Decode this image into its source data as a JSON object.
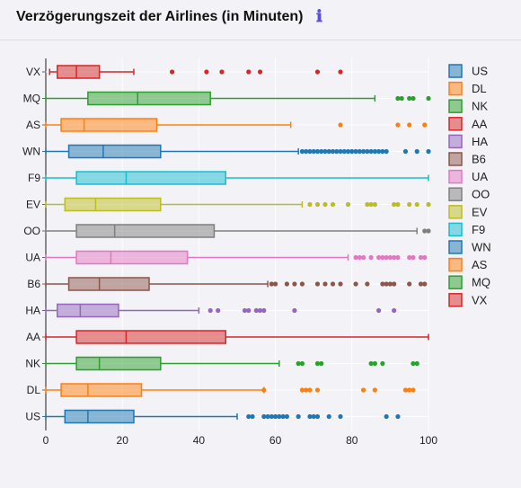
{
  "header": {
    "title": "Verzögerungszeit der Airlines (in Minuten)",
    "info_icon": "info-icon"
  },
  "chart_data": {
    "type": "box",
    "orientation": "horizontal",
    "title": "Verzögerungszeit der Airlines (in Minuten)",
    "xlabel": "",
    "ylabel": "",
    "xlim": [
      0,
      100
    ],
    "x_ticks": [
      0,
      20,
      40,
      60,
      80,
      100
    ],
    "grid": true,
    "legend_position": "right",
    "categories": [
      "VX",
      "MQ",
      "AS",
      "WN",
      "F9",
      "EV",
      "OO",
      "UA",
      "B6",
      "HA",
      "AA",
      "NK",
      "DL",
      "US"
    ],
    "series": [
      {
        "name": "US",
        "color": "#1f77b4",
        "min": 0,
        "q1": 5,
        "median": 11,
        "q3": 23,
        "max": 50,
        "outliers": [
          53,
          54,
          57,
          58,
          59,
          60,
          61,
          62,
          63,
          66,
          69,
          70,
          71,
          74,
          77,
          89,
          92
        ]
      },
      {
        "name": "DL",
        "color": "#ff7f0e",
        "min": 0,
        "q1": 4,
        "median": 11,
        "q3": 25,
        "max": 57,
        "outliers": [
          57,
          67,
          68,
          69,
          71,
          83,
          86,
          94,
          95,
          96
        ]
      },
      {
        "name": "NK",
        "color": "#2ca02c",
        "min": 0,
        "q1": 8,
        "median": 14,
        "q3": 30,
        "max": 61,
        "outliers": [
          66,
          67,
          71,
          72,
          85,
          86,
          88,
          96,
          97
        ]
      },
      {
        "name": "AA",
        "color": "#d62728",
        "min": 0,
        "q1": 8,
        "median": 21,
        "q3": 47,
        "max": 100,
        "outliers": []
      },
      {
        "name": "HA",
        "color": "#9467bd",
        "min": 0,
        "q1": 3,
        "median": 9,
        "q3": 19,
        "max": 40,
        "outliers": [
          43,
          45,
          52,
          53,
          55,
          56,
          57,
          65,
          87,
          91
        ]
      },
      {
        "name": "B6",
        "color": "#8c564b",
        "min": 0,
        "q1": 6,
        "median": 14,
        "q3": 27,
        "max": 58,
        "outliers": [
          59,
          60,
          63,
          65,
          67,
          71,
          73,
          75,
          77,
          81,
          84,
          88,
          89,
          90,
          91,
          95,
          98,
          99
        ]
      },
      {
        "name": "UA",
        "color": "#e377c2",
        "min": 0,
        "q1": 8,
        "median": 17,
        "q3": 37,
        "max": 79,
        "outliers": [
          81,
          82,
          83,
          85,
          87,
          88,
          89,
          90,
          91,
          92,
          95,
          96,
          98,
          99
        ]
      },
      {
        "name": "OO",
        "color": "#7f7f7f",
        "min": 0,
        "q1": 8,
        "median": 18,
        "q3": 44,
        "max": 97,
        "outliers": [
          99,
          100
        ]
      },
      {
        "name": "EV",
        "color": "#bcbd22",
        "min": 0,
        "q1": 5,
        "median": 13,
        "q3": 30,
        "max": 67,
        "outliers": [
          69,
          71,
          73,
          75,
          79,
          84,
          85,
          86,
          91,
          92,
          95,
          97,
          100
        ]
      },
      {
        "name": "F9",
        "color": "#17becf",
        "min": 0,
        "q1": 8,
        "median": 21,
        "q3": 47,
        "max": 100,
        "outliers": []
      },
      {
        "name": "WN",
        "color": "#1f77b4",
        "min": 0,
        "q1": 6,
        "median": 15,
        "q3": 30,
        "max": 66,
        "outliers": [
          67,
          68,
          69,
          70,
          71,
          72,
          73,
          74,
          75,
          76,
          77,
          78,
          79,
          80,
          81,
          82,
          83,
          84,
          85,
          86,
          87,
          88,
          89,
          94,
          97,
          100
        ]
      },
      {
        "name": "AS",
        "color": "#ff7f0e",
        "min": 0,
        "q1": 4,
        "median": 10,
        "q3": 29,
        "max": 64,
        "outliers": [
          77,
          92,
          95,
          99
        ]
      },
      {
        "name": "MQ",
        "color": "#2ca02c",
        "min": 0,
        "q1": 11,
        "median": 24,
        "q3": 43,
        "max": 86,
        "outliers": [
          92,
          93,
          95,
          96,
          100
        ]
      },
      {
        "name": "VX",
        "color": "#d62728",
        "min": 1,
        "q1": 3,
        "median": 8,
        "q3": 14,
        "max": 23,
        "outliers": [
          33,
          42,
          46,
          53,
          56,
          71,
          77
        ]
      }
    ]
  }
}
